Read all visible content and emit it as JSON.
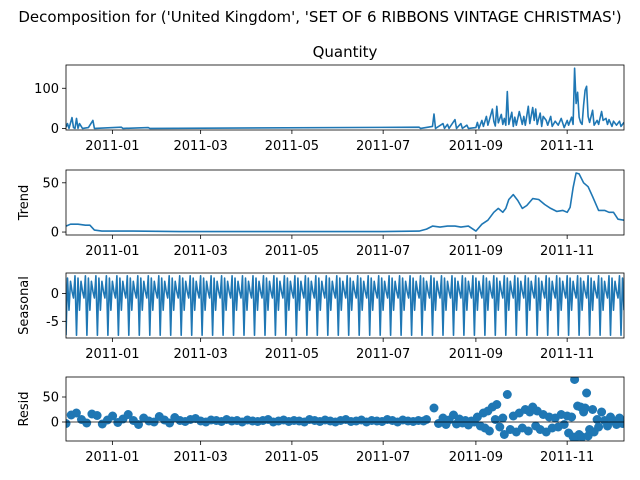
{
  "chart_data": {
    "suptitle": "Decomposition for ('United Kingdom', 'SET OF 6 RIBBONS VINTAGE CHRISTMAS')",
    "type": "line",
    "x_range": [
      "2010-12-01",
      "2011-12-09"
    ],
    "x_ticks": [
      "2011-01",
      "2011-03",
      "2011-05",
      "2011-07",
      "2011-09",
      "2011-11"
    ],
    "panels": [
      {
        "key": "observed",
        "type": "line",
        "title": "Quantity",
        "ylabel": "",
        "ylim": [
          -4,
          158
        ],
        "y_ticks": [
          0,
          100
        ],
        "color": "#1f77b4",
        "points": [
          [
            "2010-12-01",
            3
          ],
          [
            "2010-12-02",
            12
          ],
          [
            "2010-12-03",
            0
          ],
          [
            "2010-12-05",
            27
          ],
          [
            "2010-12-06",
            2
          ],
          [
            "2010-12-07",
            0
          ],
          [
            "2010-12-08",
            25
          ],
          [
            "2010-12-09",
            0
          ],
          [
            "2010-12-10",
            12
          ],
          [
            "2010-12-12",
            0
          ],
          [
            "2010-12-16",
            2
          ],
          [
            "2010-12-19",
            20
          ],
          [
            "2010-12-20",
            0
          ],
          [
            "2011-01-07",
            3
          ],
          [
            "2011-01-08",
            0
          ],
          [
            "2011-01-25",
            2
          ],
          [
            "2011-01-26",
            0
          ],
          [
            "2011-07-25",
            3
          ],
          [
            "2011-07-26",
            0
          ],
          [
            "2011-08-03",
            5
          ],
          [
            "2011-08-04",
            36
          ],
          [
            "2011-08-05",
            0
          ],
          [
            "2011-08-10",
            12
          ],
          [
            "2011-08-11",
            0
          ],
          [
            "2011-08-13",
            10
          ],
          [
            "2011-08-14",
            0
          ],
          [
            "2011-08-18",
            22
          ],
          [
            "2011-08-19",
            0
          ],
          [
            "2011-08-22",
            12
          ],
          [
            "2011-08-23",
            0
          ],
          [
            "2011-08-26",
            8
          ],
          [
            "2011-08-27",
            0
          ],
          [
            "2011-09-01",
            2
          ],
          [
            "2011-09-02",
            15
          ],
          [
            "2011-09-03",
            0
          ],
          [
            "2011-09-05",
            20
          ],
          [
            "2011-09-06",
            5
          ],
          [
            "2011-09-08",
            30
          ],
          [
            "2011-09-09",
            8
          ],
          [
            "2011-09-12",
            48
          ],
          [
            "2011-09-13",
            18
          ],
          [
            "2011-09-14",
            6
          ],
          [
            "2011-09-15",
            55
          ],
          [
            "2011-09-16",
            14
          ],
          [
            "2011-09-18",
            35
          ],
          [
            "2011-09-19",
            10
          ],
          [
            "2011-09-20",
            25
          ],
          [
            "2011-09-21",
            8
          ],
          [
            "2011-09-22",
            92
          ],
          [
            "2011-09-23",
            10
          ],
          [
            "2011-09-25",
            40
          ],
          [
            "2011-09-26",
            5
          ],
          [
            "2011-09-27",
            28
          ],
          [
            "2011-09-28",
            8
          ],
          [
            "2011-09-30",
            42
          ],
          [
            "2011-10-02",
            10
          ],
          [
            "2011-10-03",
            30
          ],
          [
            "2011-10-04",
            8
          ],
          [
            "2011-10-06",
            55
          ],
          [
            "2011-10-07",
            12
          ],
          [
            "2011-10-09",
            52
          ],
          [
            "2011-10-10",
            20
          ],
          [
            "2011-10-11",
            48
          ],
          [
            "2011-10-12",
            10
          ],
          [
            "2011-10-14",
            38
          ],
          [
            "2011-10-15",
            5
          ],
          [
            "2011-10-16",
            30
          ],
          [
            "2011-10-18",
            20
          ],
          [
            "2011-10-19",
            8
          ],
          [
            "2011-10-21",
            30
          ],
          [
            "2011-10-22",
            5
          ],
          [
            "2011-10-24",
            18
          ],
          [
            "2011-10-26",
            8
          ],
          [
            "2011-10-28",
            25
          ],
          [
            "2011-10-30",
            2
          ],
          [
            "2011-11-01",
            20
          ],
          [
            "2011-11-02",
            8
          ],
          [
            "2011-11-04",
            28
          ],
          [
            "2011-11-05",
            10
          ],
          [
            "2011-11-06",
            150
          ],
          [
            "2011-11-07",
            62
          ],
          [
            "2011-11-08",
            90
          ],
          [
            "2011-11-09",
            28
          ],
          [
            "2011-11-10",
            15
          ],
          [
            "2011-11-11",
            10
          ],
          [
            "2011-11-12",
            58
          ],
          [
            "2011-11-13",
            95
          ],
          [
            "2011-11-14",
            105
          ],
          [
            "2011-11-15",
            30
          ],
          [
            "2011-11-16",
            15
          ],
          [
            "2011-11-18",
            45
          ],
          [
            "2011-11-19",
            8
          ],
          [
            "2011-11-21",
            20
          ],
          [
            "2011-11-22",
            10
          ],
          [
            "2011-11-24",
            42
          ],
          [
            "2011-11-25",
            20
          ],
          [
            "2011-11-27",
            25
          ],
          [
            "2011-11-28",
            10
          ],
          [
            "2011-11-29",
            22
          ],
          [
            "2011-12-01",
            5
          ],
          [
            "2011-12-02",
            18
          ],
          [
            "2011-12-04",
            8
          ],
          [
            "2011-12-06",
            18
          ],
          [
            "2011-12-07",
            5
          ],
          [
            "2011-12-09",
            15
          ]
        ]
      },
      {
        "key": "trend",
        "type": "line",
        "title": "",
        "ylabel": "Trend",
        "ylim": [
          -3,
          63
        ],
        "y_ticks": [
          0,
          50
        ],
        "color": "#1f77b4",
        "points": [
          [
            "2010-12-01",
            6
          ],
          [
            "2010-12-04",
            8
          ],
          [
            "2010-12-09",
            8
          ],
          [
            "2010-12-14",
            7
          ],
          [
            "2010-12-17",
            7
          ],
          [
            "2010-12-20",
            2
          ],
          [
            "2010-12-25",
            1
          ],
          [
            "2011-01-15",
            1
          ],
          [
            "2011-02-15",
            0.5
          ],
          [
            "2011-05-01",
            0.5
          ],
          [
            "2011-07-01",
            0.5
          ],
          [
            "2011-07-25",
            1
          ],
          [
            "2011-07-30",
            3
          ],
          [
            "2011-08-03",
            6
          ],
          [
            "2011-08-08",
            5
          ],
          [
            "2011-08-13",
            6
          ],
          [
            "2011-08-18",
            6
          ],
          [
            "2011-08-22",
            5
          ],
          [
            "2011-08-27",
            6
          ],
          [
            "2011-08-30",
            3
          ],
          [
            "2011-09-01",
            1
          ],
          [
            "2011-09-05",
            8
          ],
          [
            "2011-09-09",
            12
          ],
          [
            "2011-09-13",
            20
          ],
          [
            "2011-09-16",
            24
          ],
          [
            "2011-09-19",
            20
          ],
          [
            "2011-09-21",
            24
          ],
          [
            "2011-09-23",
            33
          ],
          [
            "2011-09-26",
            38
          ],
          [
            "2011-09-29",
            32
          ],
          [
            "2011-10-02",
            24
          ],
          [
            "2011-10-05",
            27
          ],
          [
            "2011-10-09",
            34
          ],
          [
            "2011-10-13",
            33
          ],
          [
            "2011-10-17",
            28
          ],
          [
            "2011-10-21",
            24
          ],
          [
            "2011-10-25",
            21
          ],
          [
            "2011-10-29",
            22
          ],
          [
            "2011-11-01",
            20
          ],
          [
            "2011-11-03",
            25
          ],
          [
            "2011-11-05",
            45
          ],
          [
            "2011-11-07",
            60
          ],
          [
            "2011-11-09",
            59
          ],
          [
            "2011-11-12",
            50
          ],
          [
            "2011-11-15",
            46
          ],
          [
            "2011-11-18",
            36
          ],
          [
            "2011-11-22",
            22
          ],
          [
            "2011-11-26",
            22
          ],
          [
            "2011-11-29",
            20
          ],
          [
            "2011-12-02",
            20
          ],
          [
            "2011-12-05",
            13
          ],
          [
            "2011-12-09",
            12
          ]
        ]
      },
      {
        "key": "seasonal",
        "type": "line",
        "title": "",
        "ylabel": "Seasonal",
        "ylim": [
          -8,
          3.7
        ],
        "y_ticks": [
          0,
          -5
        ],
        "color": "#1f77b4",
        "period_days": 7,
        "cycle": [
          -7.5,
          2.8,
          -3.0,
          2.2,
          0.4,
          -0.8,
          3.2
        ]
      },
      {
        "key": "resid",
        "type": "scatter",
        "title": "",
        "ylabel": "Resid",
        "ylim": [
          -38,
          90
        ],
        "y_ticks": [
          0,
          50
        ],
        "color": "#1f77b4",
        "base": [
          -3,
          14,
          18,
          5,
          -2,
          16,
          13,
          -4,
          4,
          12,
          -1,
          6,
          15,
          3,
          -5,
          8,
          2,
          0,
          11,
          4,
          -2,
          9,
          3,
          1,
          5,
          7,
          2,
          0,
          4,
          3,
          1,
          5,
          2,
          3,
          0,
          4,
          2,
          1,
          3,
          5,
          0,
          2,
          4,
          1,
          3,
          2,
          0,
          5,
          3,
          1,
          4,
          2,
          0,
          3,
          5,
          1,
          2,
          4,
          0,
          3,
          2,
          1,
          5,
          3,
          0,
          4,
          2,
          1,
          3,
          2
        ],
        "points": [
          [
            "2011-07-30",
            5
          ],
          [
            "2011-08-04",
            28
          ],
          [
            "2011-08-07",
            -3
          ],
          [
            "2011-08-10",
            8
          ],
          [
            "2011-08-12",
            -5
          ],
          [
            "2011-08-14",
            4
          ],
          [
            "2011-08-17",
            14
          ],
          [
            "2011-08-19",
            -4
          ],
          [
            "2011-08-21",
            6
          ],
          [
            "2011-08-23",
            -2
          ],
          [
            "2011-08-25",
            3
          ],
          [
            "2011-08-27",
            -6
          ],
          [
            "2011-08-29",
            2
          ],
          [
            "2011-08-31",
            0
          ],
          [
            "2011-09-02",
            10
          ],
          [
            "2011-09-04",
            -8
          ],
          [
            "2011-09-06",
            18
          ],
          [
            "2011-09-07",
            -12
          ],
          [
            "2011-09-09",
            22
          ],
          [
            "2011-09-10",
            -18
          ],
          [
            "2011-09-12",
            30
          ],
          [
            "2011-09-14",
            5
          ],
          [
            "2011-09-15",
            35
          ],
          [
            "2011-09-17",
            -10
          ],
          [
            "2011-09-19",
            8
          ],
          [
            "2011-09-20",
            -25
          ],
          [
            "2011-09-22",
            55
          ],
          [
            "2011-09-24",
            -15
          ],
          [
            "2011-09-26",
            12
          ],
          [
            "2011-09-28",
            -20
          ],
          [
            "2011-09-30",
            18
          ],
          [
            "2011-10-02",
            -12
          ],
          [
            "2011-10-04",
            25
          ],
          [
            "2011-10-06",
            -18
          ],
          [
            "2011-10-07",
            20
          ],
          [
            "2011-10-09",
            30
          ],
          [
            "2011-10-11",
            -8
          ],
          [
            "2011-10-12",
            22
          ],
          [
            "2011-10-14",
            -15
          ],
          [
            "2011-10-16",
            15
          ],
          [
            "2011-10-18",
            -20
          ],
          [
            "2011-10-20",
            10
          ],
          [
            "2011-10-22",
            -12
          ],
          [
            "2011-10-24",
            8
          ],
          [
            "2011-10-26",
            -10
          ],
          [
            "2011-10-28",
            15
          ],
          [
            "2011-10-30",
            -5
          ],
          [
            "2011-11-01",
            12
          ],
          [
            "2011-11-02",
            -22
          ],
          [
            "2011-11-04",
            10
          ],
          [
            "2011-11-05",
            -30
          ],
          [
            "2011-11-06",
            85
          ],
          [
            "2011-11-07",
            -30
          ],
          [
            "2011-11-08",
            32
          ],
          [
            "2011-11-09",
            -25
          ],
          [
            "2011-11-10",
            30
          ],
          [
            "2011-11-11",
            -30
          ],
          [
            "2011-11-12",
            20
          ],
          [
            "2011-11-13",
            28
          ],
          [
            "2011-11-14",
            58
          ],
          [
            "2011-11-15",
            -28
          ],
          [
            "2011-11-16",
            -15
          ],
          [
            "2011-11-18",
            25
          ],
          [
            "2011-11-19",
            -20
          ],
          [
            "2011-11-21",
            5
          ],
          [
            "2011-11-22",
            -10
          ],
          [
            "2011-11-24",
            20
          ],
          [
            "2011-11-26",
            3
          ],
          [
            "2011-11-28",
            -8
          ],
          [
            "2011-11-30",
            10
          ],
          [
            "2011-12-02",
            2
          ],
          [
            "2011-12-04",
            -5
          ],
          [
            "2011-12-06",
            8
          ],
          [
            "2011-12-08",
            -3
          ]
        ]
      }
    ]
  }
}
